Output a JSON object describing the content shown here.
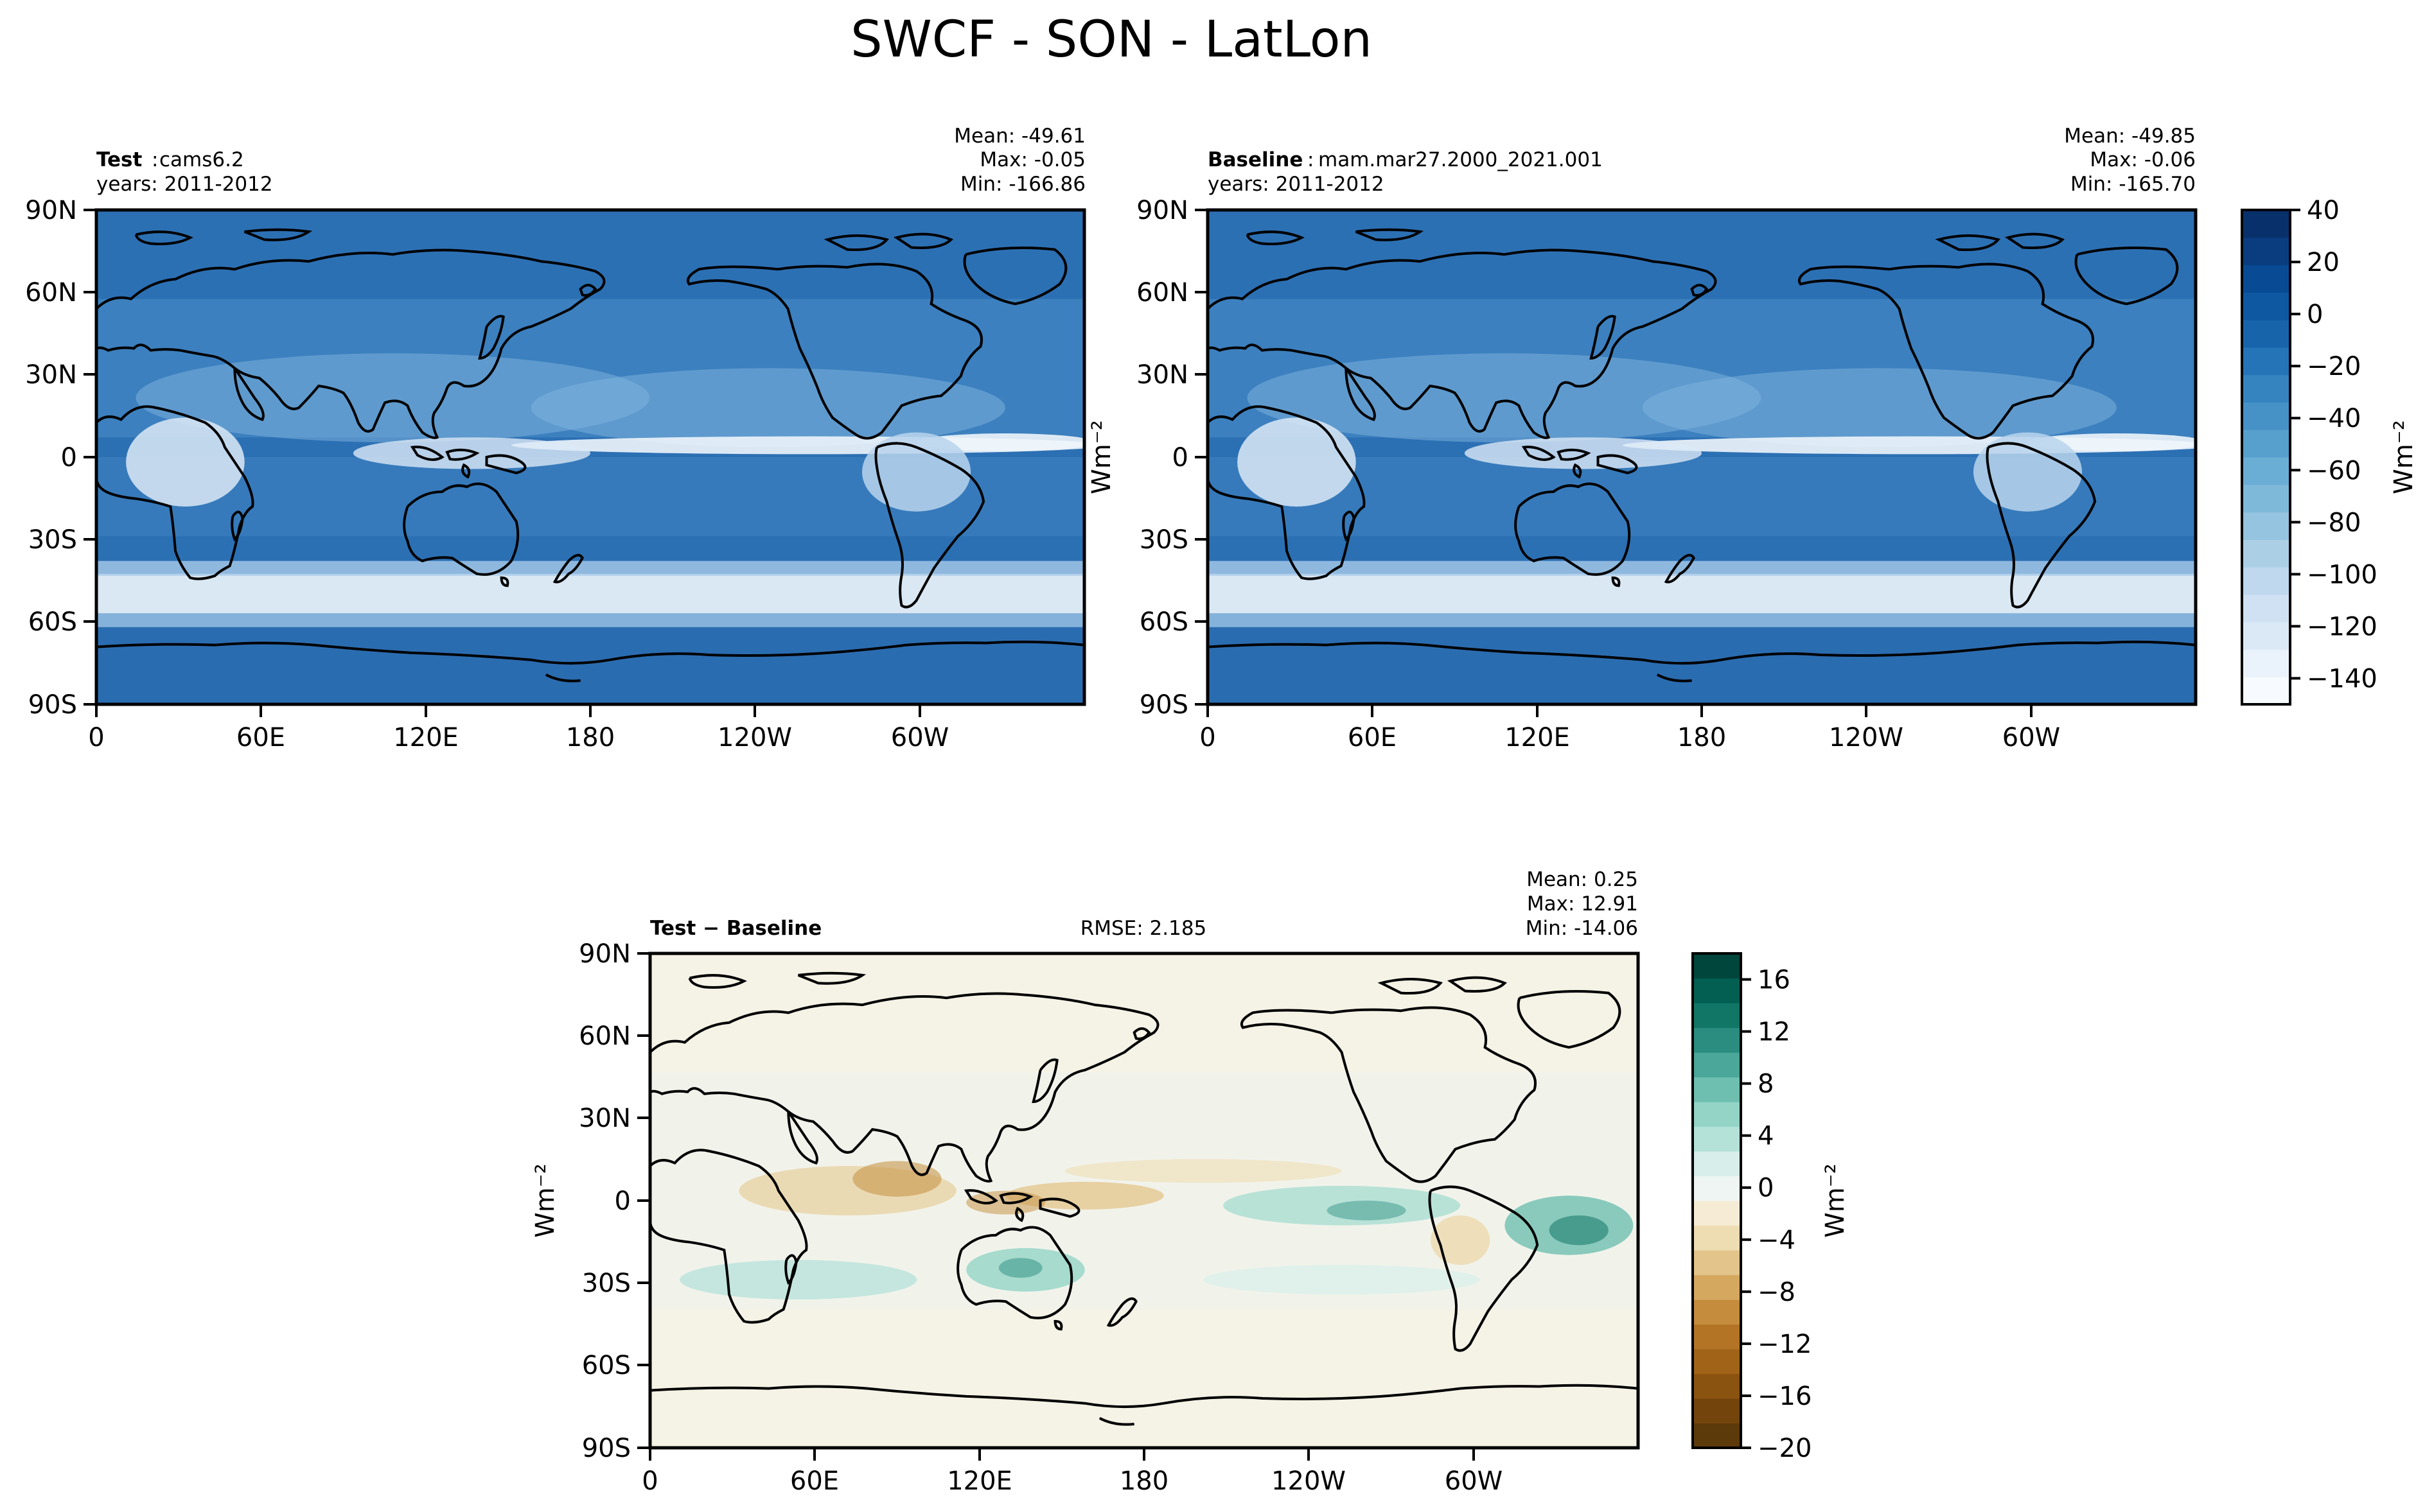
{
  "figure": {
    "title": "SWCF - SON - LatLon"
  },
  "panels": [
    {
      "id": "test",
      "label": "Test",
      "name": "cams6.2",
      "years": "years: 2011-2012",
      "stats": {
        "mean": "Mean: -49.61",
        "max": "Max: -0.05",
        "min": "Min: -166.86"
      }
    },
    {
      "id": "baseline",
      "label": "Baseline",
      "name": "mam.mar27.2000_2021.001",
      "years": "years: 2011-2012",
      "stats": {
        "mean": "Mean: -49.85",
        "max": "Max: -0.06",
        "min": "Min: -165.70"
      }
    },
    {
      "id": "diff",
      "label": "Test − Baseline",
      "rmse": "RMSE: 2.185",
      "stats": {
        "mean": "Mean:  0.25",
        "max": "Max: 12.91",
        "min": "Min: -14.06"
      }
    }
  ],
  "axes": {
    "lat_ticks": [
      "90N",
      "60N",
      "30N",
      "0",
      "30S",
      "60S",
      "90S"
    ],
    "lon_ticks": [
      "0",
      "60E",
      "120E",
      "180",
      "120W",
      "60W"
    ]
  },
  "colorbars": {
    "main": {
      "unit": "Wm⁻²",
      "ticks": [
        "40",
        "20",
        "0",
        "−20",
        "−40",
        "−60",
        "−80",
        "−100",
        "−120",
        "−140"
      ],
      "colors": [
        "#f7fbff",
        "#eaf3fb",
        "#dbe9f6",
        "#cfe1f2",
        "#bfd8ed",
        "#abd0e6",
        "#94c4df",
        "#7fb9da",
        "#6aaed6",
        "#57a0ce",
        "#4692c7",
        "#3584c0",
        "#2474b7",
        "#1764ab",
        "#0e58a2",
        "#084b94",
        "#0a3d80",
        "#08306b"
      ]
    },
    "diff": {
      "unit": "Wm⁻²",
      "ticks": [
        "16",
        "12",
        "8",
        "4",
        "0",
        "−4",
        "−8",
        "−12",
        "−16",
        "−20"
      ],
      "colors": [
        "#5c3a0a",
        "#73450c",
        "#8b5310",
        "#a06318",
        "#b47425",
        "#c58c3e",
        "#d5a860",
        "#e3c48a",
        "#eedcb2",
        "#f6ecd5",
        "#eef5f3",
        "#d8eeea",
        "#b4e2d9",
        "#93d4c7",
        "#6fbfb0",
        "#4aa799",
        "#2a8d80",
        "#127667",
        "#025f52",
        "#01463c"
      ]
    }
  },
  "colors": {
    "ocean_main": "#2c70b4",
    "itcz": "#eef5fb",
    "storm_track": "#e4eef8",
    "diff_bg": "#f5f2e6",
    "diff_pos": "#2a8d80",
    "diff_neg": "#c8964a",
    "coast": "#000000"
  }
}
